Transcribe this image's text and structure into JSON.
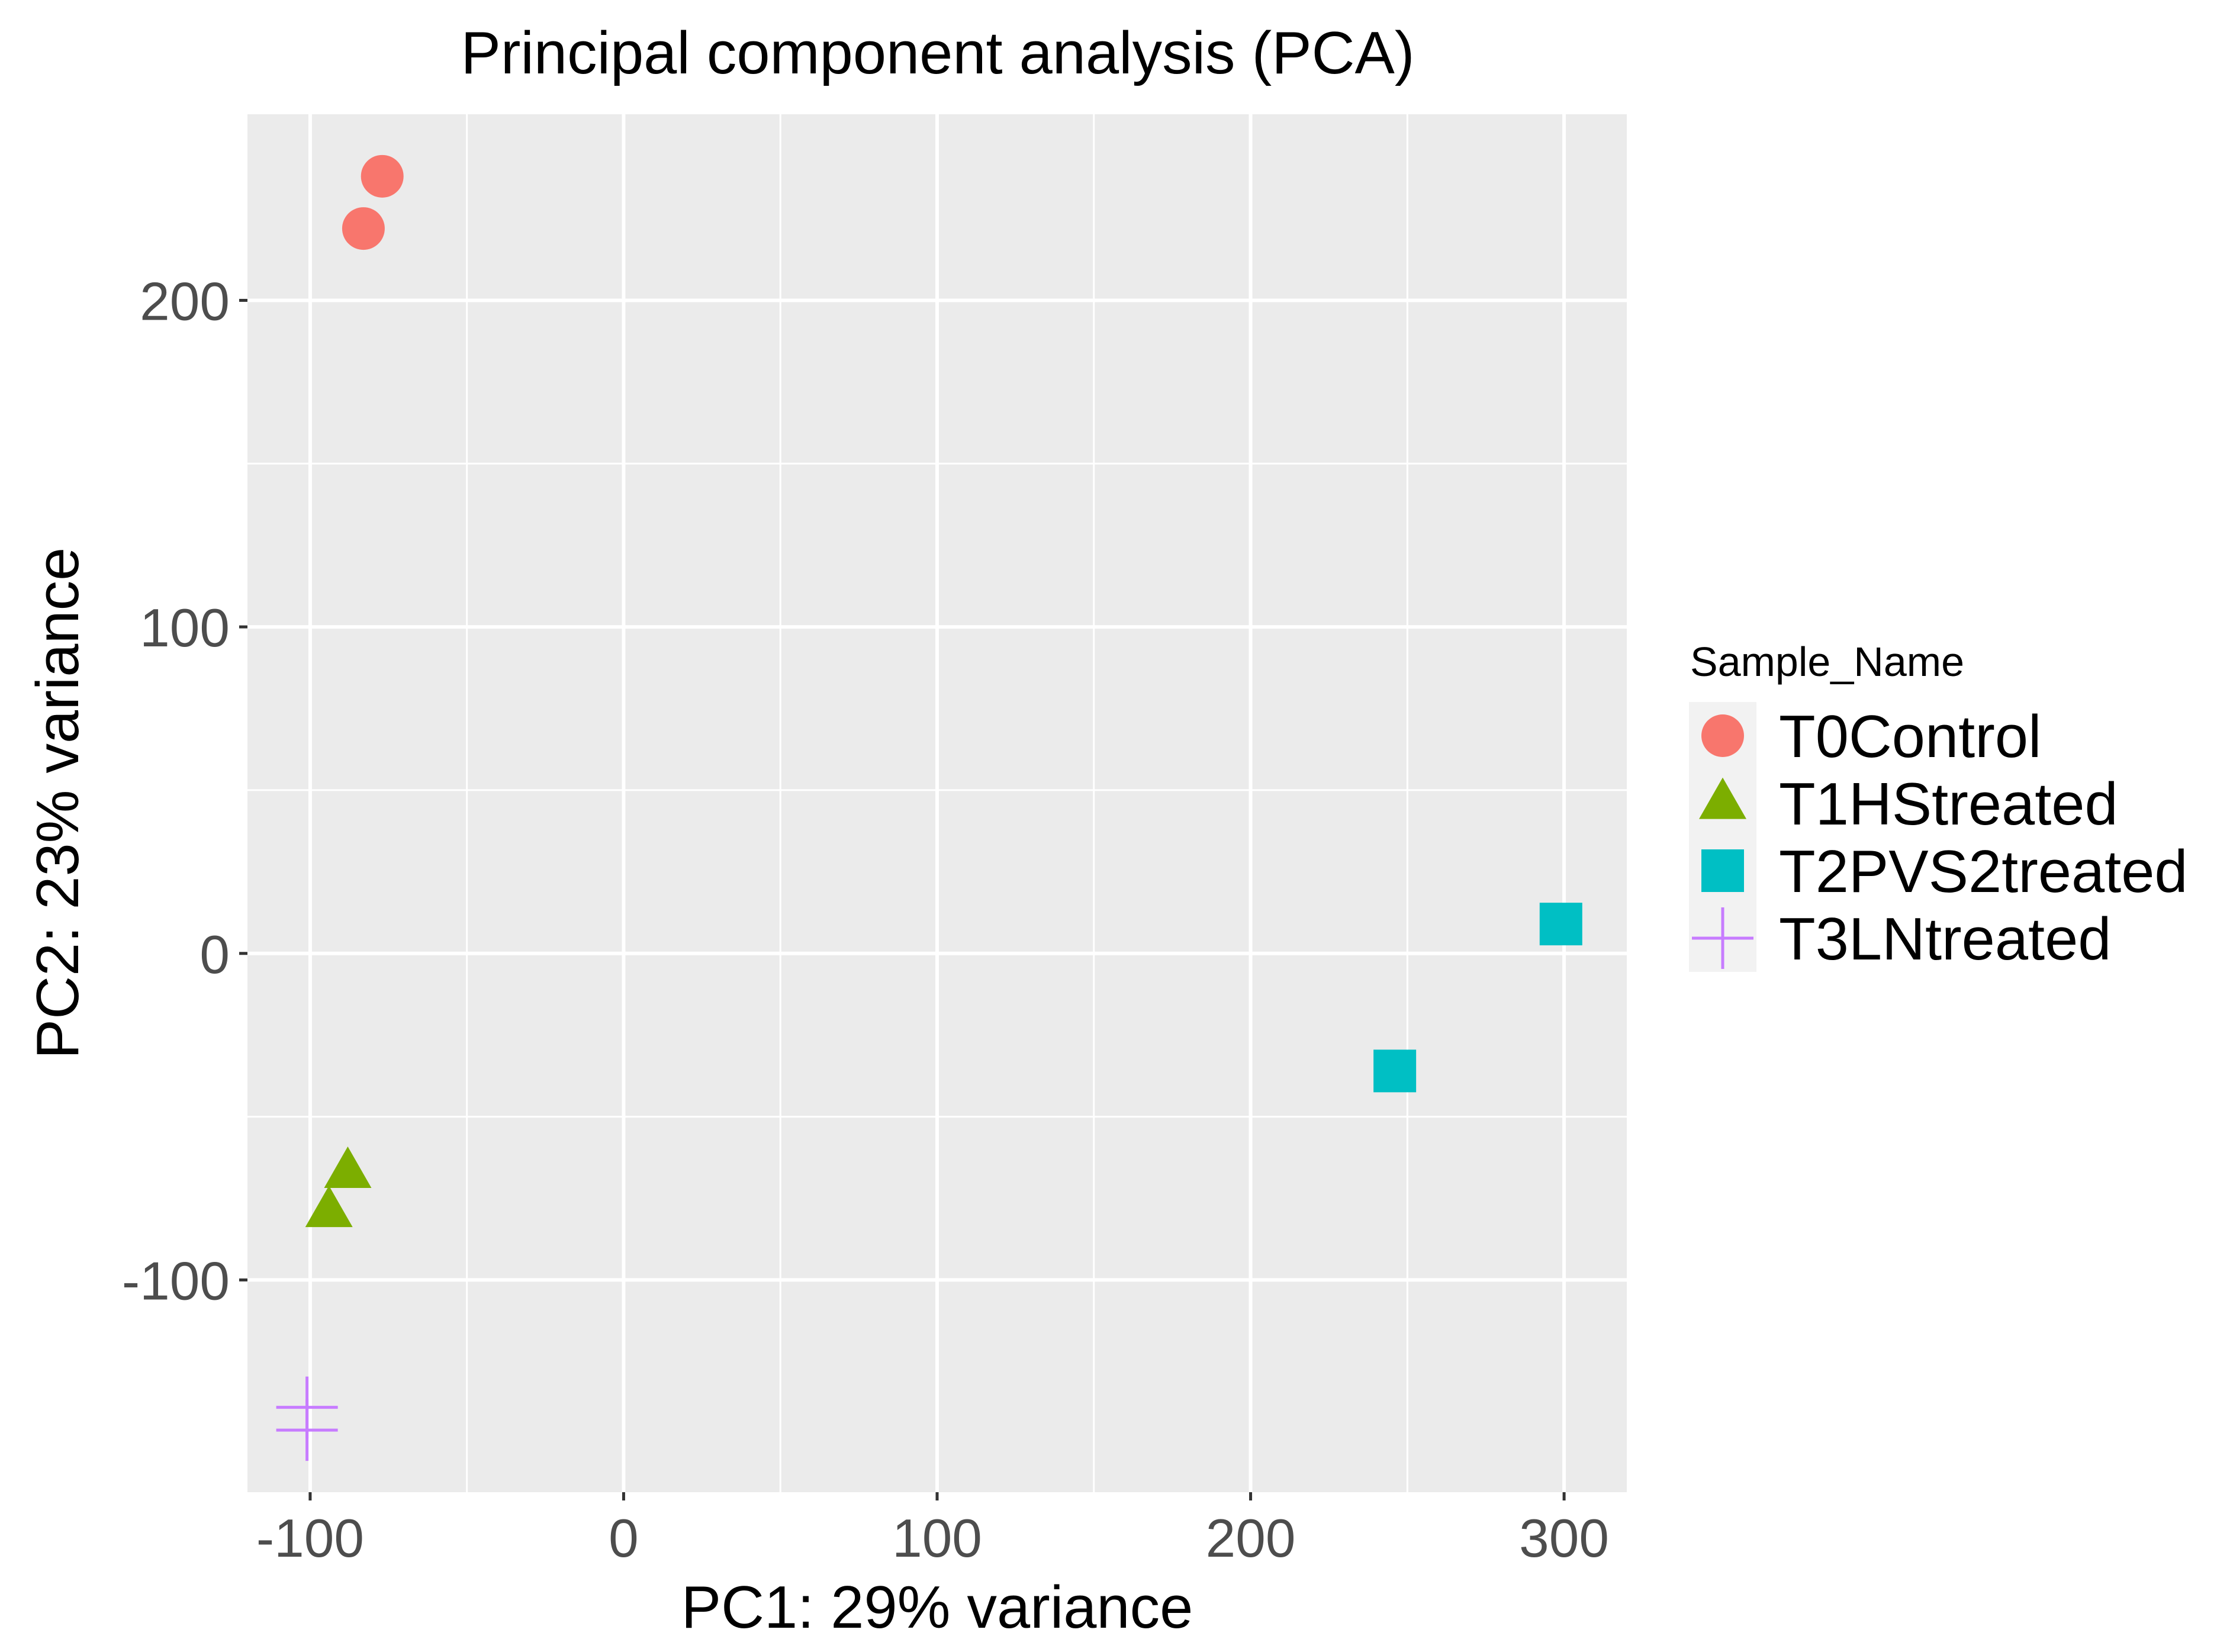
{
  "chart_data": {
    "type": "scatter",
    "title": "Principal component analysis (PCA)",
    "xlabel": "PC1: 29% variance",
    "ylabel": "PC2: 23% variance",
    "xlim": [
      -120,
      320
    ],
    "ylim": [
      -165,
      257
    ],
    "x_ticks": [
      -100,
      0,
      100,
      200,
      300
    ],
    "x_tick_labels": [
      "-100",
      "0",
      "100",
      "200",
      "300"
    ],
    "y_ticks": [
      -100,
      0,
      100,
      200
    ],
    "y_tick_labels": [
      "-100",
      "0",
      "100",
      "200"
    ],
    "x_minor_ticks": [
      -50,
      50,
      150,
      250
    ],
    "y_minor_ticks": [
      -50,
      50,
      150
    ],
    "grid": true,
    "legend_position": "right",
    "legend": {
      "title": "Sample_Name"
    },
    "series": [
      {
        "name": "T0Control",
        "shape": "circle",
        "color": "#F8766D",
        "points": [
          [
            -77,
            238
          ],
          [
            -83,
            222
          ]
        ]
      },
      {
        "name": "T1HStreated",
        "shape": "triangle",
        "color": "#7CAE00",
        "points": [
          [
            -88,
            -67
          ],
          [
            -94,
            -79
          ]
        ]
      },
      {
        "name": "T2PVS2treated",
        "shape": "square",
        "color": "#00BFC4",
        "points": [
          [
            299,
            9
          ],
          [
            246,
            -36
          ]
        ]
      },
      {
        "name": "T3LNtreated",
        "shape": "plus",
        "color": "#C77CFF",
        "points": [
          [
            -101,
            -139
          ],
          [
            -101,
            -146
          ]
        ]
      }
    ]
  },
  "colors": {
    "panel_background": "#EBEBEB",
    "grid_line": "#FFFFFF",
    "tick_label": "#4D4D4D",
    "tick_mark": "#333333",
    "legend_key_background": "#F2F2F2"
  }
}
